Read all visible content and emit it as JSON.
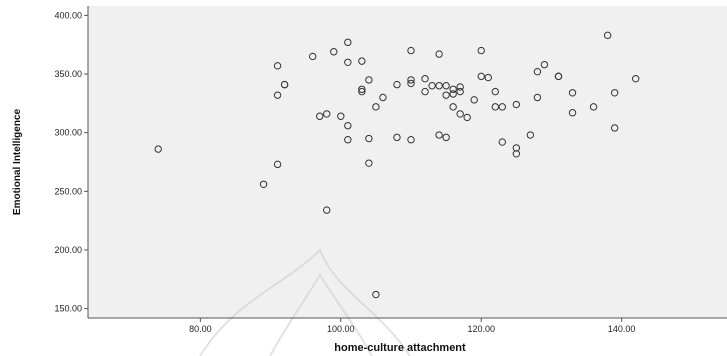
{
  "chart_data": {
    "type": "scatter",
    "title": "",
    "xlabel": "home-culture attachment",
    "ylabel": "Emotional Intelligence",
    "xlim": [
      64,
      155
    ],
    "ylim": [
      142,
      408
    ],
    "xticks": [
      "80.00",
      "100.00",
      "120.00",
      "140.00"
    ],
    "xtick_values": [
      80,
      100,
      120,
      140
    ],
    "yticks": [
      "150.00",
      "200.00",
      "250.00",
      "300.00",
      "350.00",
      "400.00"
    ],
    "ytick_values": [
      150,
      200,
      250,
      300,
      350,
      400
    ],
    "grid": false,
    "background_color": "#f0f0f0",
    "marker": "hollow-circle",
    "points": [
      [
        74,
        286
      ],
      [
        89,
        256
      ],
      [
        91,
        357
      ],
      [
        91,
        332
      ],
      [
        91,
        273
      ],
      [
        92,
        341
      ],
      [
        92,
        341
      ],
      [
        96,
        365
      ],
      [
        97,
        314
      ],
      [
        98,
        316
      ],
      [
        98,
        234
      ],
      [
        99,
        369
      ],
      [
        100,
        314
      ],
      [
        101,
        377
      ],
      [
        101,
        360
      ],
      [
        101,
        306
      ],
      [
        101,
        294
      ],
      [
        103,
        361
      ],
      [
        103,
        337
      ],
      [
        103,
        335
      ],
      [
        104,
        345
      ],
      [
        104,
        295
      ],
      [
        104,
        274
      ],
      [
        105,
        322
      ],
      [
        105,
        162
      ],
      [
        106,
        330
      ],
      [
        108,
        341
      ],
      [
        108,
        296
      ],
      [
        110,
        370
      ],
      [
        110,
        345
      ],
      [
        110,
        342
      ],
      [
        110,
        294
      ],
      [
        112,
        346
      ],
      [
        112,
        335
      ],
      [
        113,
        340
      ],
      [
        114,
        367
      ],
      [
        114,
        340
      ],
      [
        114,
        298
      ],
      [
        115,
        340
      ],
      [
        115,
        332
      ],
      [
        115,
        296
      ],
      [
        116,
        337
      ],
      [
        116,
        322
      ],
      [
        116,
        333
      ],
      [
        117,
        339
      ],
      [
        117,
        335
      ],
      [
        117,
        316
      ],
      [
        118,
        313
      ],
      [
        119,
        328
      ],
      [
        120,
        370
      ],
      [
        120,
        348
      ],
      [
        121,
        347
      ],
      [
        122,
        335
      ],
      [
        122,
        322
      ],
      [
        123,
        322
      ],
      [
        123,
        292
      ],
      [
        125,
        324
      ],
      [
        125,
        287
      ],
      [
        125,
        282
      ],
      [
        127,
        298
      ],
      [
        128,
        352
      ],
      [
        128,
        330
      ],
      [
        129,
        358
      ],
      [
        131,
        348
      ],
      [
        131,
        348
      ],
      [
        133,
        334
      ],
      [
        133,
        317
      ],
      [
        136,
        322
      ],
      [
        138,
        383
      ],
      [
        139,
        334
      ],
      [
        139,
        304
      ],
      [
        142,
        346
      ]
    ]
  }
}
